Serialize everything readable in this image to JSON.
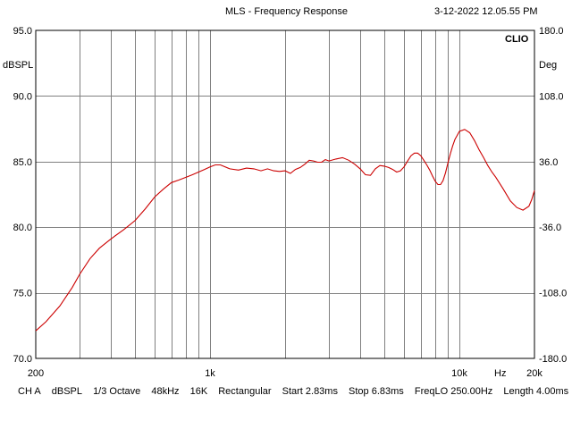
{
  "header": {
    "title": "MLS - Frequency Response",
    "timestamp": "3-12-2022 12.05.55 PM",
    "brand": "CLIO"
  },
  "footer": {
    "channel": "CH A",
    "unit": "dBSPL",
    "smoothing": "1/3 Octave",
    "sample_rate": "48kHz",
    "size": "16K",
    "window": "Rectangular",
    "start": "Start 2.83ms",
    "stop": "Stop 6.83ms",
    "freqlo": "FreqLO 250.00Hz",
    "length": "Length 4.00ms"
  },
  "colors": {
    "trace": "#cc0000",
    "grid": "#808080",
    "frame": "#000000"
  },
  "chart_data": {
    "type": "line",
    "title": "MLS - Frequency Response",
    "xscale": "log",
    "xlim": [
      200,
      20000
    ],
    "ylim": [
      70,
      95
    ],
    "y2lim": [
      -180,
      180
    ],
    "ylabel": "dBSPL",
    "y2label": "Deg",
    "xunit_label": "Hz",
    "grid": true,
    "x_ticks": [
      {
        "value": 200,
        "label": "200"
      },
      {
        "value": 1000,
        "label": "1k"
      },
      {
        "value": 10000,
        "label": "10k"
      },
      {
        "value": 20000,
        "label": "20k"
      }
    ],
    "y_ticks": [
      "95.0",
      "90.0",
      "85.0",
      "80.0",
      "75.0",
      "70.0"
    ],
    "y_tick_values": [
      95,
      90,
      85,
      80,
      75,
      70
    ],
    "y2_ticks": [
      "180.0",
      "108.0",
      "36.0",
      "-36.0",
      "-108.0",
      "-180.0"
    ],
    "y2_tick_values": [
      180,
      108,
      36,
      -36,
      -108,
      -180
    ],
    "series": [
      {
        "x": [
          200,
          220,
          250,
          280,
          300,
          330,
          360,
          400,
          450,
          500,
          550,
          600,
          650,
          700,
          750,
          800,
          850,
          900,
          950,
          1000,
          1050,
          1100,
          1200,
          1300,
          1400,
          1500,
          1600,
          1700,
          1800,
          1900,
          2000,
          2100,
          2200,
          2300,
          2400,
          2500,
          2600,
          2700,
          2800,
          2900,
          3000,
          3200,
          3400,
          3600,
          3800,
          4000,
          4200,
          4400,
          4600,
          4800,
          5000,
          5200,
          5400,
          5600,
          5800,
          6000,
          6200,
          6400,
          6600,
          6800,
          7000,
          7200,
          7400,
          7600,
          7800,
          8000,
          8200,
          8400,
          8600,
          8800,
          9000,
          9200,
          9400,
          9600,
          9800,
          10000,
          10500,
          11000,
          11500,
          12000,
          12500,
          13000,
          13500,
          14000,
          15000,
          16000,
          17000,
          18000,
          19000,
          19500,
          20000
        ],
        "y": [
          72.1,
          72.8,
          74.0,
          75.4,
          76.4,
          77.6,
          78.4,
          79.1,
          79.8,
          80.5,
          81.4,
          82.3,
          82.9,
          83.4,
          83.6,
          83.8,
          84.0,
          84.2,
          84.4,
          84.6,
          84.75,
          84.75,
          84.45,
          84.35,
          84.5,
          84.45,
          84.3,
          84.45,
          84.3,
          84.25,
          84.3,
          84.1,
          84.4,
          84.55,
          84.8,
          85.1,
          85.05,
          84.95,
          84.95,
          85.15,
          85.05,
          85.2,
          85.3,
          85.1,
          84.8,
          84.45,
          84.0,
          83.95,
          84.45,
          84.7,
          84.65,
          84.55,
          84.4,
          84.2,
          84.3,
          84.6,
          85.05,
          85.45,
          85.65,
          85.65,
          85.45,
          85.1,
          84.75,
          84.35,
          83.9,
          83.5,
          83.25,
          83.25,
          83.55,
          84.15,
          84.9,
          85.6,
          86.2,
          86.7,
          87.0,
          87.3,
          87.45,
          87.2,
          86.6,
          85.9,
          85.3,
          84.7,
          84.2,
          83.8,
          82.9,
          82.0,
          81.5,
          81.3,
          81.6,
          82.1,
          82.8
        ]
      }
    ]
  }
}
